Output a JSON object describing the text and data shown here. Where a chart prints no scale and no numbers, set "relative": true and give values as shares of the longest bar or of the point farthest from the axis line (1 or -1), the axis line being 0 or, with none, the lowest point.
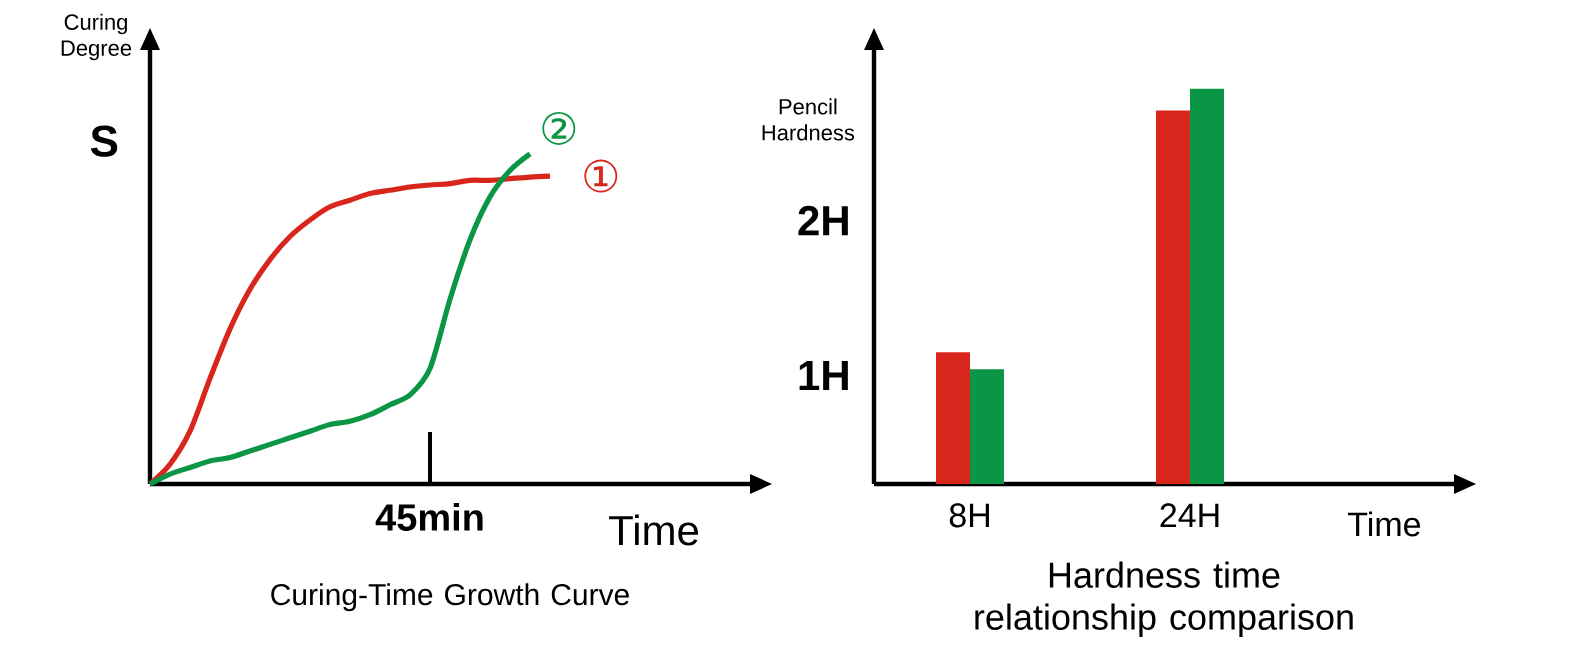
{
  "chart_data": [
    {
      "type": "line",
      "title": "Curing-Time Growth Curve",
      "xlabel": "Time",
      "ylabel": "Curing Degree",
      "relative": true,
      "annotations": [
        "45min",
        "S"
      ],
      "categories": [
        null,
        null,
        null,
        null,
        null,
        null,
        null,
        null,
        null,
        null,
        null,
        null,
        null,
        null,
        null,
        null,
        null,
        null,
        null,
        null,
        null
      ],
      "series": [
        {
          "name": "①",
          "color": "#d9261c",
          "values": [
            0,
            0.06,
            0.16,
            0.32,
            0.47,
            0.59,
            0.68,
            0.75,
            0.8,
            0.84,
            0.86,
            0.88,
            0.89,
            0.9,
            0.906,
            0.91,
            0.92,
            0.92,
            0.925,
            0.93,
            0.933
          ]
        },
        {
          "name": "②",
          "color": "#0a9644",
          "values": [
            0,
            0.03,
            0.05,
            0.07,
            0.08,
            0.1,
            0.12,
            0.14,
            0.16,
            0.18,
            0.19,
            0.21,
            0.24,
            0.27,
            0.35,
            0.56,
            0.74,
            0.87,
            0.95,
            1,
            null
          ]
        }
      ]
    },
    {
      "type": "bar",
      "title": "Hardness time relationship comparison",
      "xlabel": "Time",
      "ylabel": "Pencil Hardness",
      "categories": [
        "8H",
        "24H"
      ],
      "ylim": [
        0.3,
        3.1
      ],
      "yticks": [
        {
          "value": 1,
          "label": "1H"
        },
        {
          "value": 2,
          "label": "2H"
        }
      ],
      "series": [
        {
          "color": "#d9261c",
          "values": [
            1.15,
            2.71
          ]
        },
        {
          "color": "#0a9644",
          "values": [
            1.04,
            2.85
          ]
        }
      ]
    }
  ]
}
